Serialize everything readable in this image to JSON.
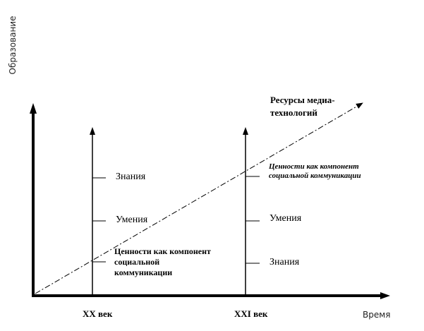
{
  "axes": {
    "y_label": "Образование",
    "x_label": "Время"
  },
  "eras": {
    "xx": {
      "label": "XX век",
      "levels": {
        "top": "Знания",
        "middle": "Умения",
        "bottom_line1": "Ценности как компонент",
        "bottom_line2": "социальной",
        "bottom_line3": "коммуникации"
      }
    },
    "xxi": {
      "label": "XXI век",
      "levels": {
        "top_line1": "Ценности как компонент",
        "top_line2": "социальной коммуникации",
        "middle": "Умения",
        "bottom": "Знания"
      }
    }
  },
  "trend": {
    "label_line1": "Ресурсы медиа-",
    "label_line2": "технологий"
  }
}
